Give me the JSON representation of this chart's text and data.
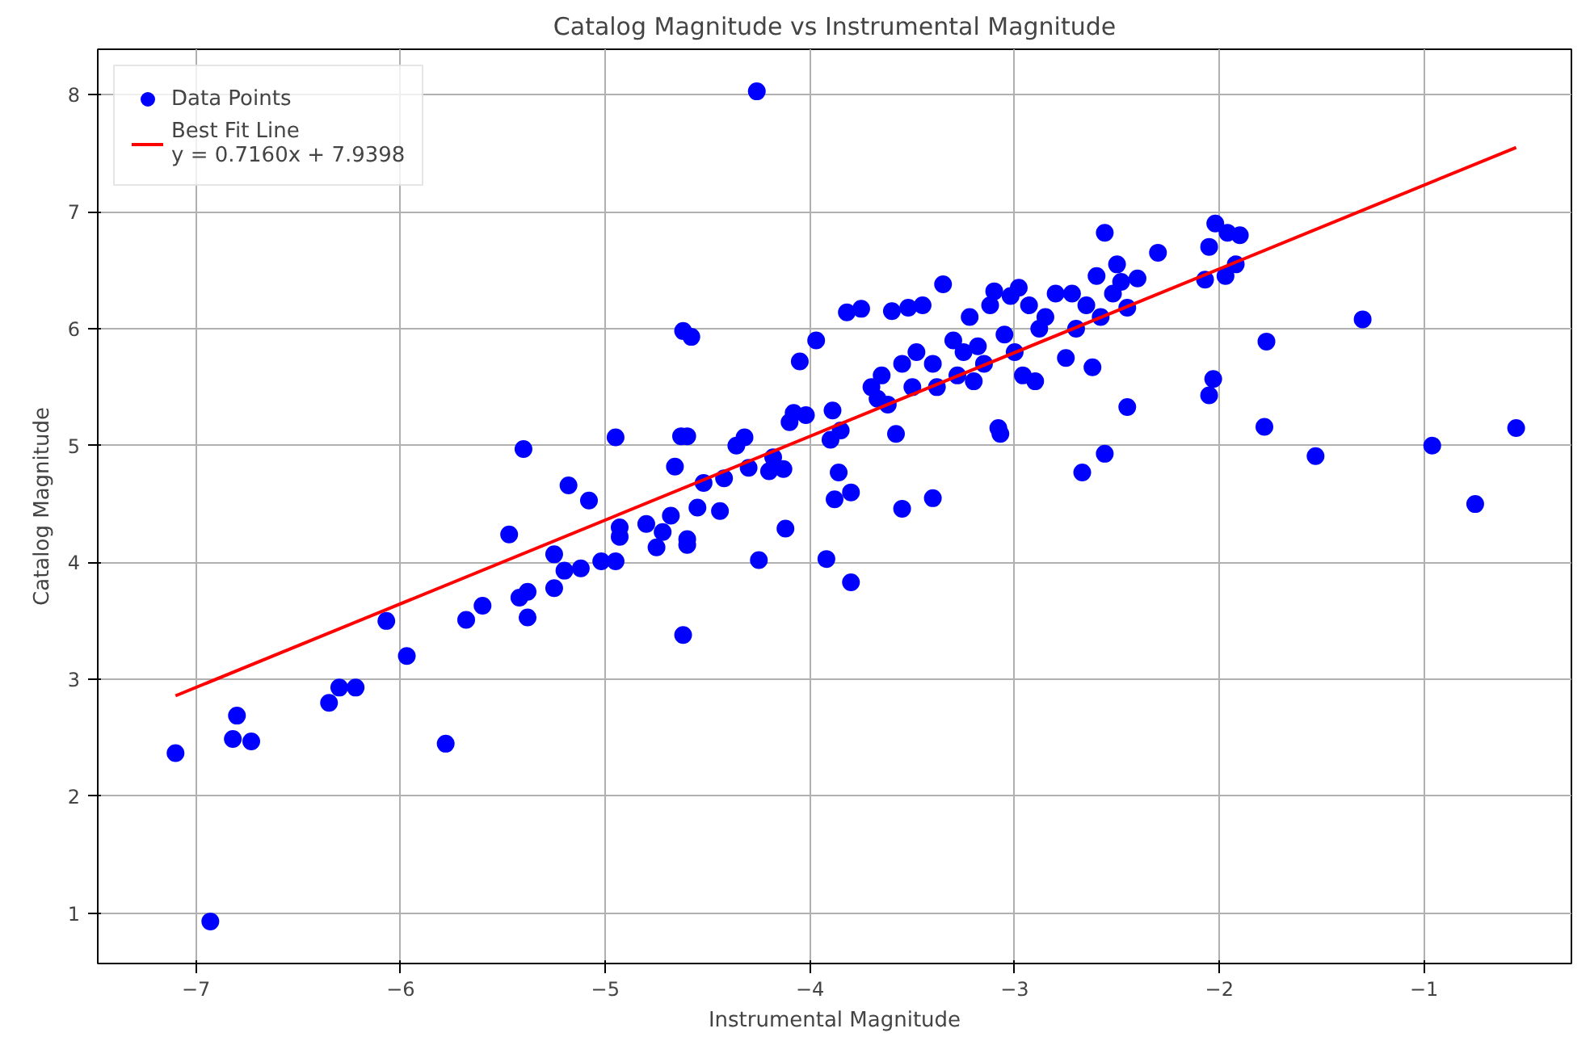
{
  "chart_data": {
    "type": "scatter",
    "title": "Catalog Magnitude vs Instrumental Magnitude",
    "xlabel": "Instrumental Magnitude",
    "ylabel": "Catalog Magnitude",
    "xlim": [
      -7.48,
      -0.28
    ],
    "ylim": [
      0.57,
      8.39
    ],
    "xticks": [
      {
        "value": -7,
        "label": "−7"
      },
      {
        "value": -6,
        "label": "−6"
      },
      {
        "value": -5,
        "label": "−5"
      },
      {
        "value": -4,
        "label": "−4"
      },
      {
        "value": -3,
        "label": "−3"
      },
      {
        "value": -2,
        "label": "−2"
      },
      {
        "value": -1,
        "label": "−1"
      }
    ],
    "yticks": [
      1,
      2,
      3,
      4,
      5,
      6,
      7,
      8
    ],
    "grid": true,
    "legend": "top left",
    "series": [
      {
        "name": "Data Points",
        "marker": "circle",
        "color": "#0000ff",
        "x": [
          -7.1,
          -6.93,
          -6.82,
          -6.8,
          -6.73,
          -6.35,
          -6.3,
          -6.22,
          -6.07,
          -5.97,
          -5.78,
          -5.68,
          -5.6,
          -5.47,
          -5.42,
          -5.38,
          -5.4,
          -5.38,
          -5.25,
          -5.25,
          -5.2,
          -5.18,
          -5.12,
          -5.08,
          -5.02,
          -4.95,
          -4.93,
          -4.93,
          -4.95,
          -4.8,
          -4.75,
          -4.72,
          -4.68,
          -4.66,
          -4.63,
          -4.6,
          -4.62,
          -4.58,
          -4.62,
          -4.6,
          -4.6,
          -4.55,
          -4.52,
          -4.44,
          -4.42,
          -4.36,
          -4.32,
          -4.3,
          -4.25,
          -4.26,
          -4.2,
          -4.18,
          -4.13,
          -4.12,
          -4.1,
          -4.08,
          -4.05,
          -4.02,
          -3.97,
          -3.92,
          -3.9,
          -3.89,
          -3.88,
          -3.86,
          -3.85,
          -3.82,
          -3.8,
          -3.8,
          -3.75,
          -3.7,
          -3.67,
          -3.65,
          -3.62,
          -3.6,
          -3.58,
          -3.55,
          -3.52,
          -3.55,
          -3.5,
          -3.48,
          -3.45,
          -3.4,
          -3.4,
          -3.38,
          -3.35,
          -3.3,
          -3.28,
          -3.25,
          -3.22,
          -3.2,
          -3.18,
          -3.15,
          -3.12,
          -3.1,
          -3.08,
          -3.07,
          -3.05,
          -3.02,
          -3.0,
          -2.98,
          -2.96,
          -2.93,
          -2.9,
          -2.88,
          -2.85,
          -2.8,
          -2.75,
          -2.72,
          -2.7,
          -2.67,
          -2.65,
          -2.62,
          -2.6,
          -2.58,
          -2.56,
          -2.56,
          -2.52,
          -2.5,
          -2.48,
          -2.45,
          -2.45,
          -2.4,
          -2.3,
          -2.07,
          -2.05,
          -2.03,
          -2.05,
          -2.02,
          -1.97,
          -1.96,
          -1.92,
          -1.9,
          -1.77,
          -1.78,
          -1.53,
          -1.3,
          -0.96,
          -0.75,
          -0.55
        ],
        "values": [
          2.37,
          0.93,
          2.49,
          2.69,
          2.47,
          2.8,
          2.93,
          2.93,
          3.5,
          3.2,
          2.45,
          3.51,
          3.63,
          4.24,
          3.7,
          3.75,
          4.97,
          3.53,
          3.78,
          4.07,
          3.93,
          4.66,
          3.95,
          4.53,
          4.01,
          4.01,
          4.22,
          4.3,
          5.07,
          4.33,
          4.13,
          4.26,
          4.4,
          4.82,
          5.08,
          5.08,
          5.98,
          5.93,
          3.38,
          4.15,
          4.2,
          4.47,
          4.68,
          4.44,
          4.72,
          5.0,
          5.07,
          4.81,
          4.02,
          8.03,
          4.78,
          4.9,
          4.8,
          4.29,
          5.2,
          5.28,
          5.72,
          5.26,
          5.9,
          4.03,
          5.05,
          5.3,
          4.54,
          4.77,
          5.13,
          6.14,
          4.6,
          3.83,
          6.17,
          5.5,
          5.4,
          5.6,
          5.35,
          6.15,
          5.1,
          5.7,
          6.18,
          4.46,
          5.5,
          5.8,
          6.2,
          4.55,
          5.7,
          5.5,
          6.38,
          5.9,
          5.6,
          5.8,
          6.1,
          5.55,
          5.85,
          5.7,
          6.2,
          6.32,
          5.15,
          5.1,
          5.95,
          6.28,
          5.8,
          6.35,
          5.6,
          6.2,
          5.55,
          6.0,
          6.1,
          6.3,
          5.75,
          6.3,
          6.0,
          4.77,
          6.2,
          5.67,
          6.45,
          6.1,
          4.93,
          6.82,
          6.3,
          6.55,
          6.4,
          5.33,
          6.18,
          6.43,
          6.65,
          6.42,
          5.43,
          5.57,
          6.7,
          6.9,
          6.45,
          6.82,
          6.55,
          6.8,
          5.89,
          5.16,
          4.91,
          6.08,
          5.0,
          4.5,
          5.15
        ]
      },
      {
        "name": "Best Fit Line\ny = 0.7160x + 7.9398",
        "type": "line",
        "color": "#ff0000",
        "x": [
          -7.1,
          -0.55
        ],
        "values": [
          2.86,
          7.55
        ]
      }
    ]
  }
}
